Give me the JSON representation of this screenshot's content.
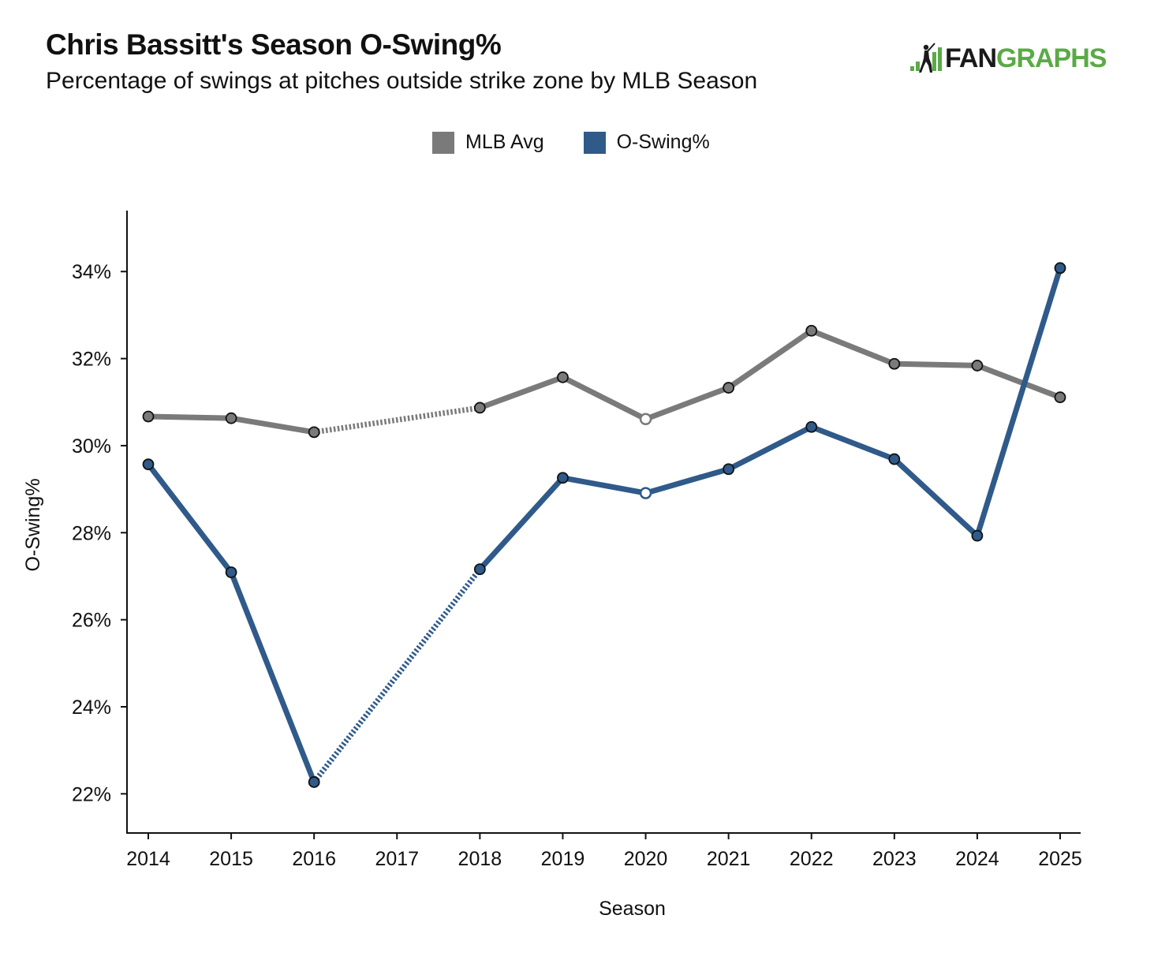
{
  "chart_data": {
    "type": "line",
    "title": "Chris Bassitt's Season O-Swing%",
    "subtitle": "Percentage of swings at pitches outside strike zone by MLB Season",
    "xlabel": "Season",
    "ylabel": "O-Swing%",
    "x": [
      2014,
      2015,
      2016,
      2017,
      2018,
      2019,
      2020,
      2021,
      2022,
      2023,
      2024,
      2025
    ],
    "x_tick_labels": [
      "2014",
      "2015",
      "2016",
      "2017",
      "2018",
      "2019",
      "2020",
      "2021",
      "2022",
      "2023",
      "2024",
      "2025"
    ],
    "y_ticks": [
      22,
      24,
      26,
      28,
      30,
      32,
      34
    ],
    "y_tick_labels": [
      "22%",
      "24%",
      "26%",
      "28%",
      "30%",
      "32%",
      "34%"
    ],
    "ylim": [
      21.1,
      35.4
    ],
    "grid": false,
    "legend_position": "top-center",
    "series": [
      {
        "name": "MLB Avg",
        "color": "#7a7a7a",
        "points": [
          {
            "x": 2014,
            "y": 30.67
          },
          {
            "x": 2015,
            "y": 30.63
          },
          {
            "x": 2016,
            "y": 30.31
          },
          {
            "x": 2018,
            "y": 30.87
          },
          {
            "x": 2019,
            "y": 31.57
          },
          {
            "x": 2020,
            "y": 30.61,
            "open": true
          },
          {
            "x": 2021,
            "y": 31.33
          },
          {
            "x": 2022,
            "y": 32.64
          },
          {
            "x": 2023,
            "y": 31.88
          },
          {
            "x": 2024,
            "y": 31.84
          },
          {
            "x": 2025,
            "y": 31.11
          }
        ]
      },
      {
        "name": "O-Swing%",
        "color": "#2f5a8a",
        "points": [
          {
            "x": 2014,
            "y": 29.57
          },
          {
            "x": 2015,
            "y": 27.09
          },
          {
            "x": 2016,
            "y": 22.27
          },
          {
            "x": 2018,
            "y": 27.16
          },
          {
            "x": 2019,
            "y": 29.26
          },
          {
            "x": 2020,
            "y": 28.91,
            "open": true
          },
          {
            "x": 2021,
            "y": 29.46
          },
          {
            "x": 2022,
            "y": 30.43
          },
          {
            "x": 2023,
            "y": 29.69
          },
          {
            "x": 2024,
            "y": 27.93
          },
          {
            "x": 2025,
            "y": 34.08
          }
        ]
      }
    ]
  },
  "logo": {
    "fan": "FAN",
    "graphs": "GRAPHS",
    "icon": "batter-silhouette-icon"
  },
  "legend": [
    {
      "label": "MLB Avg",
      "color": "#7a7a7a"
    },
    {
      "label": "O-Swing%",
      "color": "#2f5a8a"
    }
  ]
}
